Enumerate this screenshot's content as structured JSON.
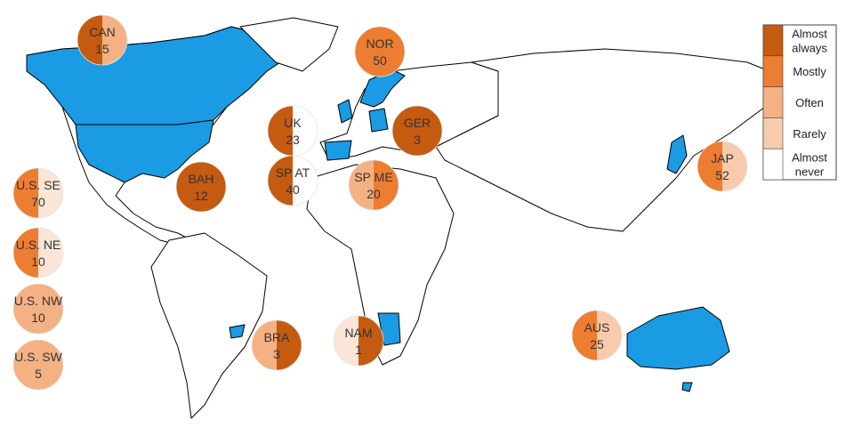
{
  "legend": [
    {
      "label": [
        "Almost",
        "always"
      ],
      "color": "#c55a11"
    },
    {
      "label": [
        "Mostly"
      ],
      "color": "#ed7d31"
    },
    {
      "label": [
        "Often"
      ],
      "color": "#f4b183"
    },
    {
      "label": [
        "Rarely"
      ],
      "color": "#f8cbad"
    },
    {
      "label": [
        "Almost",
        "never"
      ],
      "color": "#ffffff"
    }
  ],
  "circles": [
    {
      "label": "CAN",
      "value": 15,
      "left": "#c55a11",
      "right": "#f4b183"
    },
    {
      "label": "NOR",
      "value": 50,
      "left": "#ed7d31",
      "right": "#ed7d31"
    },
    {
      "label": "UK",
      "value": 23,
      "left": "#c55a11",
      "right": "#ffffff"
    },
    {
      "label": "SP AT",
      "value": 40,
      "left": "#c55a11",
      "right": "#ffffff"
    },
    {
      "label": "GER",
      "value": 3,
      "left": "#c55a11",
      "right": "#c55a11"
    },
    {
      "label": "SP ME",
      "value": 20,
      "left": "#f4b183",
      "right": "#ed7d31"
    },
    {
      "label": "BAH",
      "value": 12,
      "left": "#c55a11",
      "right": "#c55a11"
    },
    {
      "label": "U.S. SE",
      "value": 70,
      "left": "#ed7d31",
      "right": "#fbe5d6"
    },
    {
      "label": "U.S. NE",
      "value": 10,
      "left": "#ed7d31",
      "right": "#fbe5d6"
    },
    {
      "label": "U.S. NW",
      "value": 10,
      "left": "#f4b183",
      "right": "#f4b183"
    },
    {
      "label": "U.S. SW",
      "value": 5,
      "left": "#f4b183",
      "right": "#f4b183"
    },
    {
      "label": "BRA",
      "value": 3,
      "left": "#f4b183",
      "right": "#c55a11"
    },
    {
      "label": "NAM",
      "value": 1,
      "left": "#fbe5d6",
      "right": "#c55a11"
    },
    {
      "label": "AUS",
      "value": 25,
      "left": "#ed7d31",
      "right": "#f8cbad"
    },
    {
      "label": "JAP",
      "value": 52,
      "left": "#ed7d31",
      "right": "#f8cbad"
    }
  ]
}
